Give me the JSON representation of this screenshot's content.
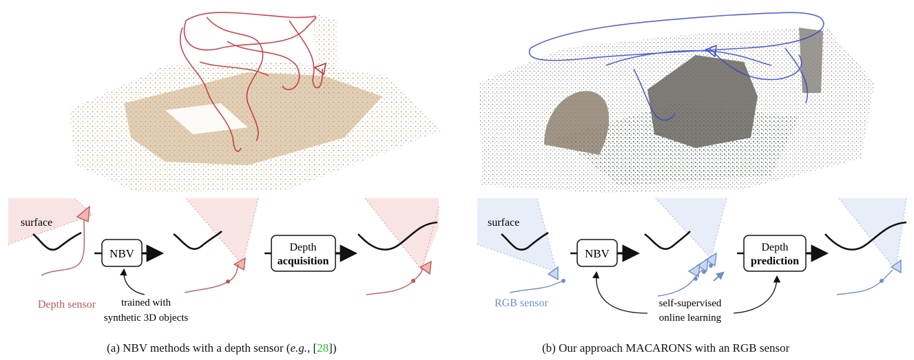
{
  "figure": {
    "panel_a": {
      "caption_prefix": "(a) NBV methods with a depth sensor (",
      "caption_eg": "e.g.",
      "caption_mid": ", [",
      "caption_ref": "28",
      "caption_suffix": "])",
      "surface_label": "surface",
      "sensor_label": "Depth sensor",
      "nbv_label": "NBV",
      "depth_label_top": "Depth",
      "depth_label_bottom": "acquisition",
      "note_line1": "trained with",
      "note_line2": "synthetic 3D objects",
      "colors": {
        "trajectory": "#c0262f",
        "cloud": "#c8a878",
        "frustum": "#f6d8d8",
        "sensor": "#b85a5a"
      }
    },
    "panel_b": {
      "caption": "(b) Our approach MACARONS with an RGB sensor",
      "surface_label": "surface",
      "sensor_label": "RGB sensor",
      "nbv_label": "NBV",
      "depth_label_top": "Depth",
      "depth_label_bottom": "prediction",
      "note_line1": "self-supervised",
      "note_line2": "online learning",
      "colors": {
        "trajectory": "#3548c8",
        "cloud": "#8f8678",
        "ground": "#3d6a54",
        "frustum": "#e3ebf8",
        "sensor": "#6f8fc8"
      }
    }
  }
}
